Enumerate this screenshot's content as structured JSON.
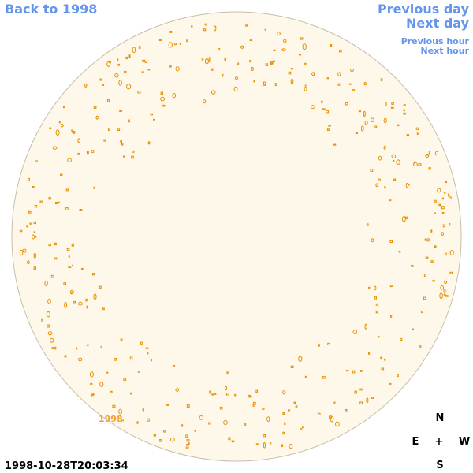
{
  "nav": {
    "back": "Back to 1998",
    "previous_day": "Previous day",
    "next_day": "Next day",
    "previous_hour": "Previous hour",
    "next_hour": "Next hour"
  },
  "image": {
    "year_link": "1998",
    "timestamp": "1998-10-28T20:03:34"
  },
  "compass": {
    "north": "N",
    "east": "E",
    "center": "+",
    "west": "W",
    "south": "S"
  }
}
